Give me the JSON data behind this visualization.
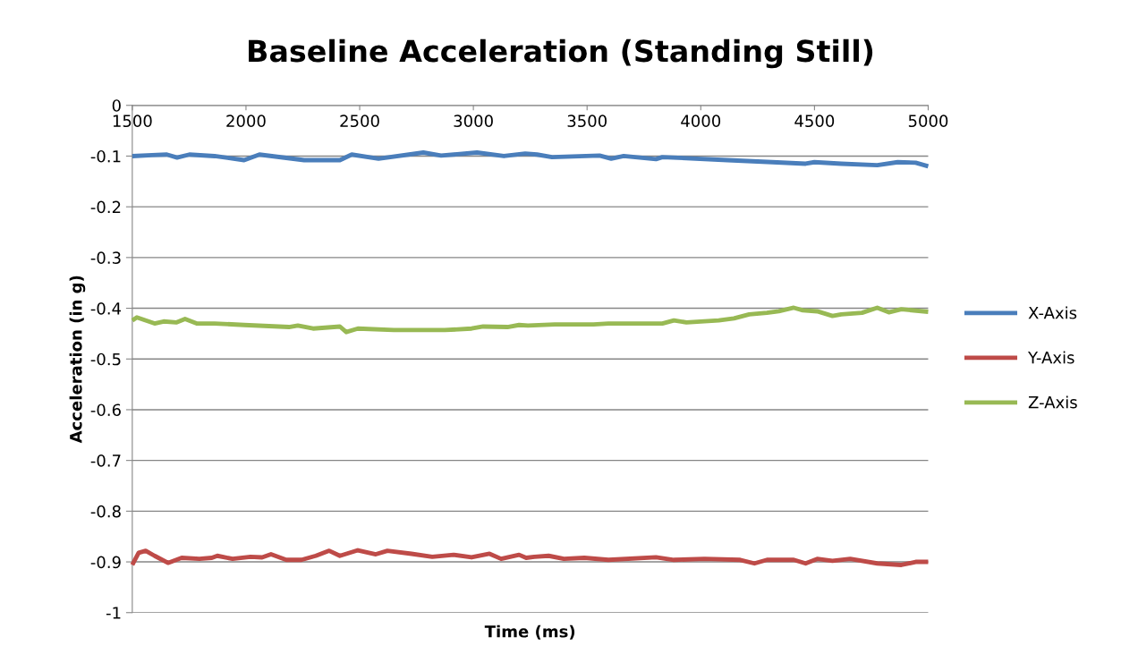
{
  "chart_data": {
    "type": "line",
    "title": "Baseline Acceleration (Standing Still)",
    "xlabel": "Time (ms)",
    "ylabel": "Acceleration (in g)",
    "xlim": [
      1500,
      5000
    ],
    "xticks": [
      1500,
      2000,
      2500,
      3000,
      3500,
      4000,
      4500,
      5000
    ],
    "ylim": [
      -1,
      0
    ],
    "yticks": [
      0,
      -0.1,
      -0.2,
      -0.3,
      -0.4,
      -0.5,
      -0.6,
      -0.7,
      -0.8,
      -0.9,
      -1
    ],
    "grid": "y",
    "legend": "right",
    "marker": "none",
    "line_style": "solid",
    "series": [
      {
        "name": "X-Axis",
        "color": "#4a7ebb",
        "x": [
          1500,
          1587,
          1652,
          1697,
          1751,
          1862,
          1992,
          2059,
          2256,
          2413,
          2465,
          2583,
          2780,
          2858,
          3016,
          3134,
          3228,
          3280,
          3346,
          3555,
          3606,
          3661,
          3803,
          3831,
          4118,
          4315,
          4461,
          4500,
          4618,
          4776,
          4866,
          4945,
          5000
        ],
        "values": [
          -0.1,
          -0.098,
          -0.097,
          -0.103,
          -0.097,
          -0.1,
          -0.108,
          -0.097,
          -0.108,
          -0.108,
          -0.097,
          -0.105,
          -0.093,
          -0.099,
          -0.093,
          -0.1,
          -0.095,
          -0.097,
          -0.102,
          -0.099,
          -0.105,
          -0.1,
          -0.106,
          -0.102,
          -0.108,
          -0.112,
          -0.115,
          -0.112,
          -0.115,
          -0.118,
          -0.112,
          -0.113,
          -0.12
        ]
      },
      {
        "name": "Y-Axis",
        "color": "#be4b48",
        "x": [
          1500,
          1528,
          1559,
          1598,
          1657,
          1717,
          1795,
          1850,
          1874,
          1941,
          2020,
          2071,
          2110,
          2177,
          2244,
          2307,
          2366,
          2413,
          2492,
          2571,
          2622,
          2728,
          2819,
          2913,
          2992,
          3071,
          3122,
          3201,
          3232,
          3268,
          3331,
          3398,
          3488,
          3594,
          3803,
          3882,
          4016,
          4173,
          4236,
          4291,
          4409,
          4461,
          4512,
          4579,
          4657,
          4776,
          4882,
          4945,
          5000
        ],
        "values": [
          -0.906,
          -0.882,
          -0.878,
          -0.888,
          -0.902,
          -0.892,
          -0.894,
          -0.892,
          -0.888,
          -0.894,
          -0.89,
          -0.891,
          -0.885,
          -0.896,
          -0.896,
          -0.888,
          -0.878,
          -0.888,
          -0.877,
          -0.885,
          -0.878,
          -0.884,
          -0.89,
          -0.886,
          -0.891,
          -0.884,
          -0.894,
          -0.886,
          -0.892,
          -0.89,
          -0.888,
          -0.894,
          -0.892,
          -0.896,
          -0.891,
          -0.896,
          -0.894,
          -0.896,
          -0.903,
          -0.896,
          -0.896,
          -0.903,
          -0.894,
          -0.898,
          -0.894,
          -0.903,
          -0.906,
          -0.9,
          -0.9
        ]
      },
      {
        "name": "Z-Axis",
        "color": "#98b954",
        "x": [
          1500,
          1520,
          1598,
          1638,
          1693,
          1732,
          1783,
          1862,
          1992,
          2189,
          2228,
          2295,
          2413,
          2441,
          2492,
          2650,
          2874,
          2992,
          3043,
          3150,
          3201,
          3240,
          3358,
          3528,
          3594,
          3831,
          3882,
          3937,
          4079,
          4146,
          4213,
          4291,
          4343,
          4409,
          4449,
          4512,
          4579,
          4618,
          4709,
          4776,
          4827,
          4882,
          5000
        ],
        "values": [
          -0.424,
          -0.418,
          -0.43,
          -0.426,
          -0.428,
          -0.421,
          -0.43,
          -0.43,
          -0.433,
          -0.437,
          -0.434,
          -0.44,
          -0.436,
          -0.447,
          -0.44,
          -0.443,
          -0.443,
          -0.44,
          -0.436,
          -0.437,
          -0.433,
          -0.434,
          -0.432,
          -0.432,
          -0.43,
          -0.43,
          -0.424,
          -0.428,
          -0.424,
          -0.42,
          -0.412,
          -0.409,
          -0.406,
          -0.399,
          -0.404,
          -0.406,
          -0.415,
          -0.412,
          -0.409,
          -0.399,
          -0.408,
          -0.402,
          -0.407
        ]
      }
    ]
  }
}
